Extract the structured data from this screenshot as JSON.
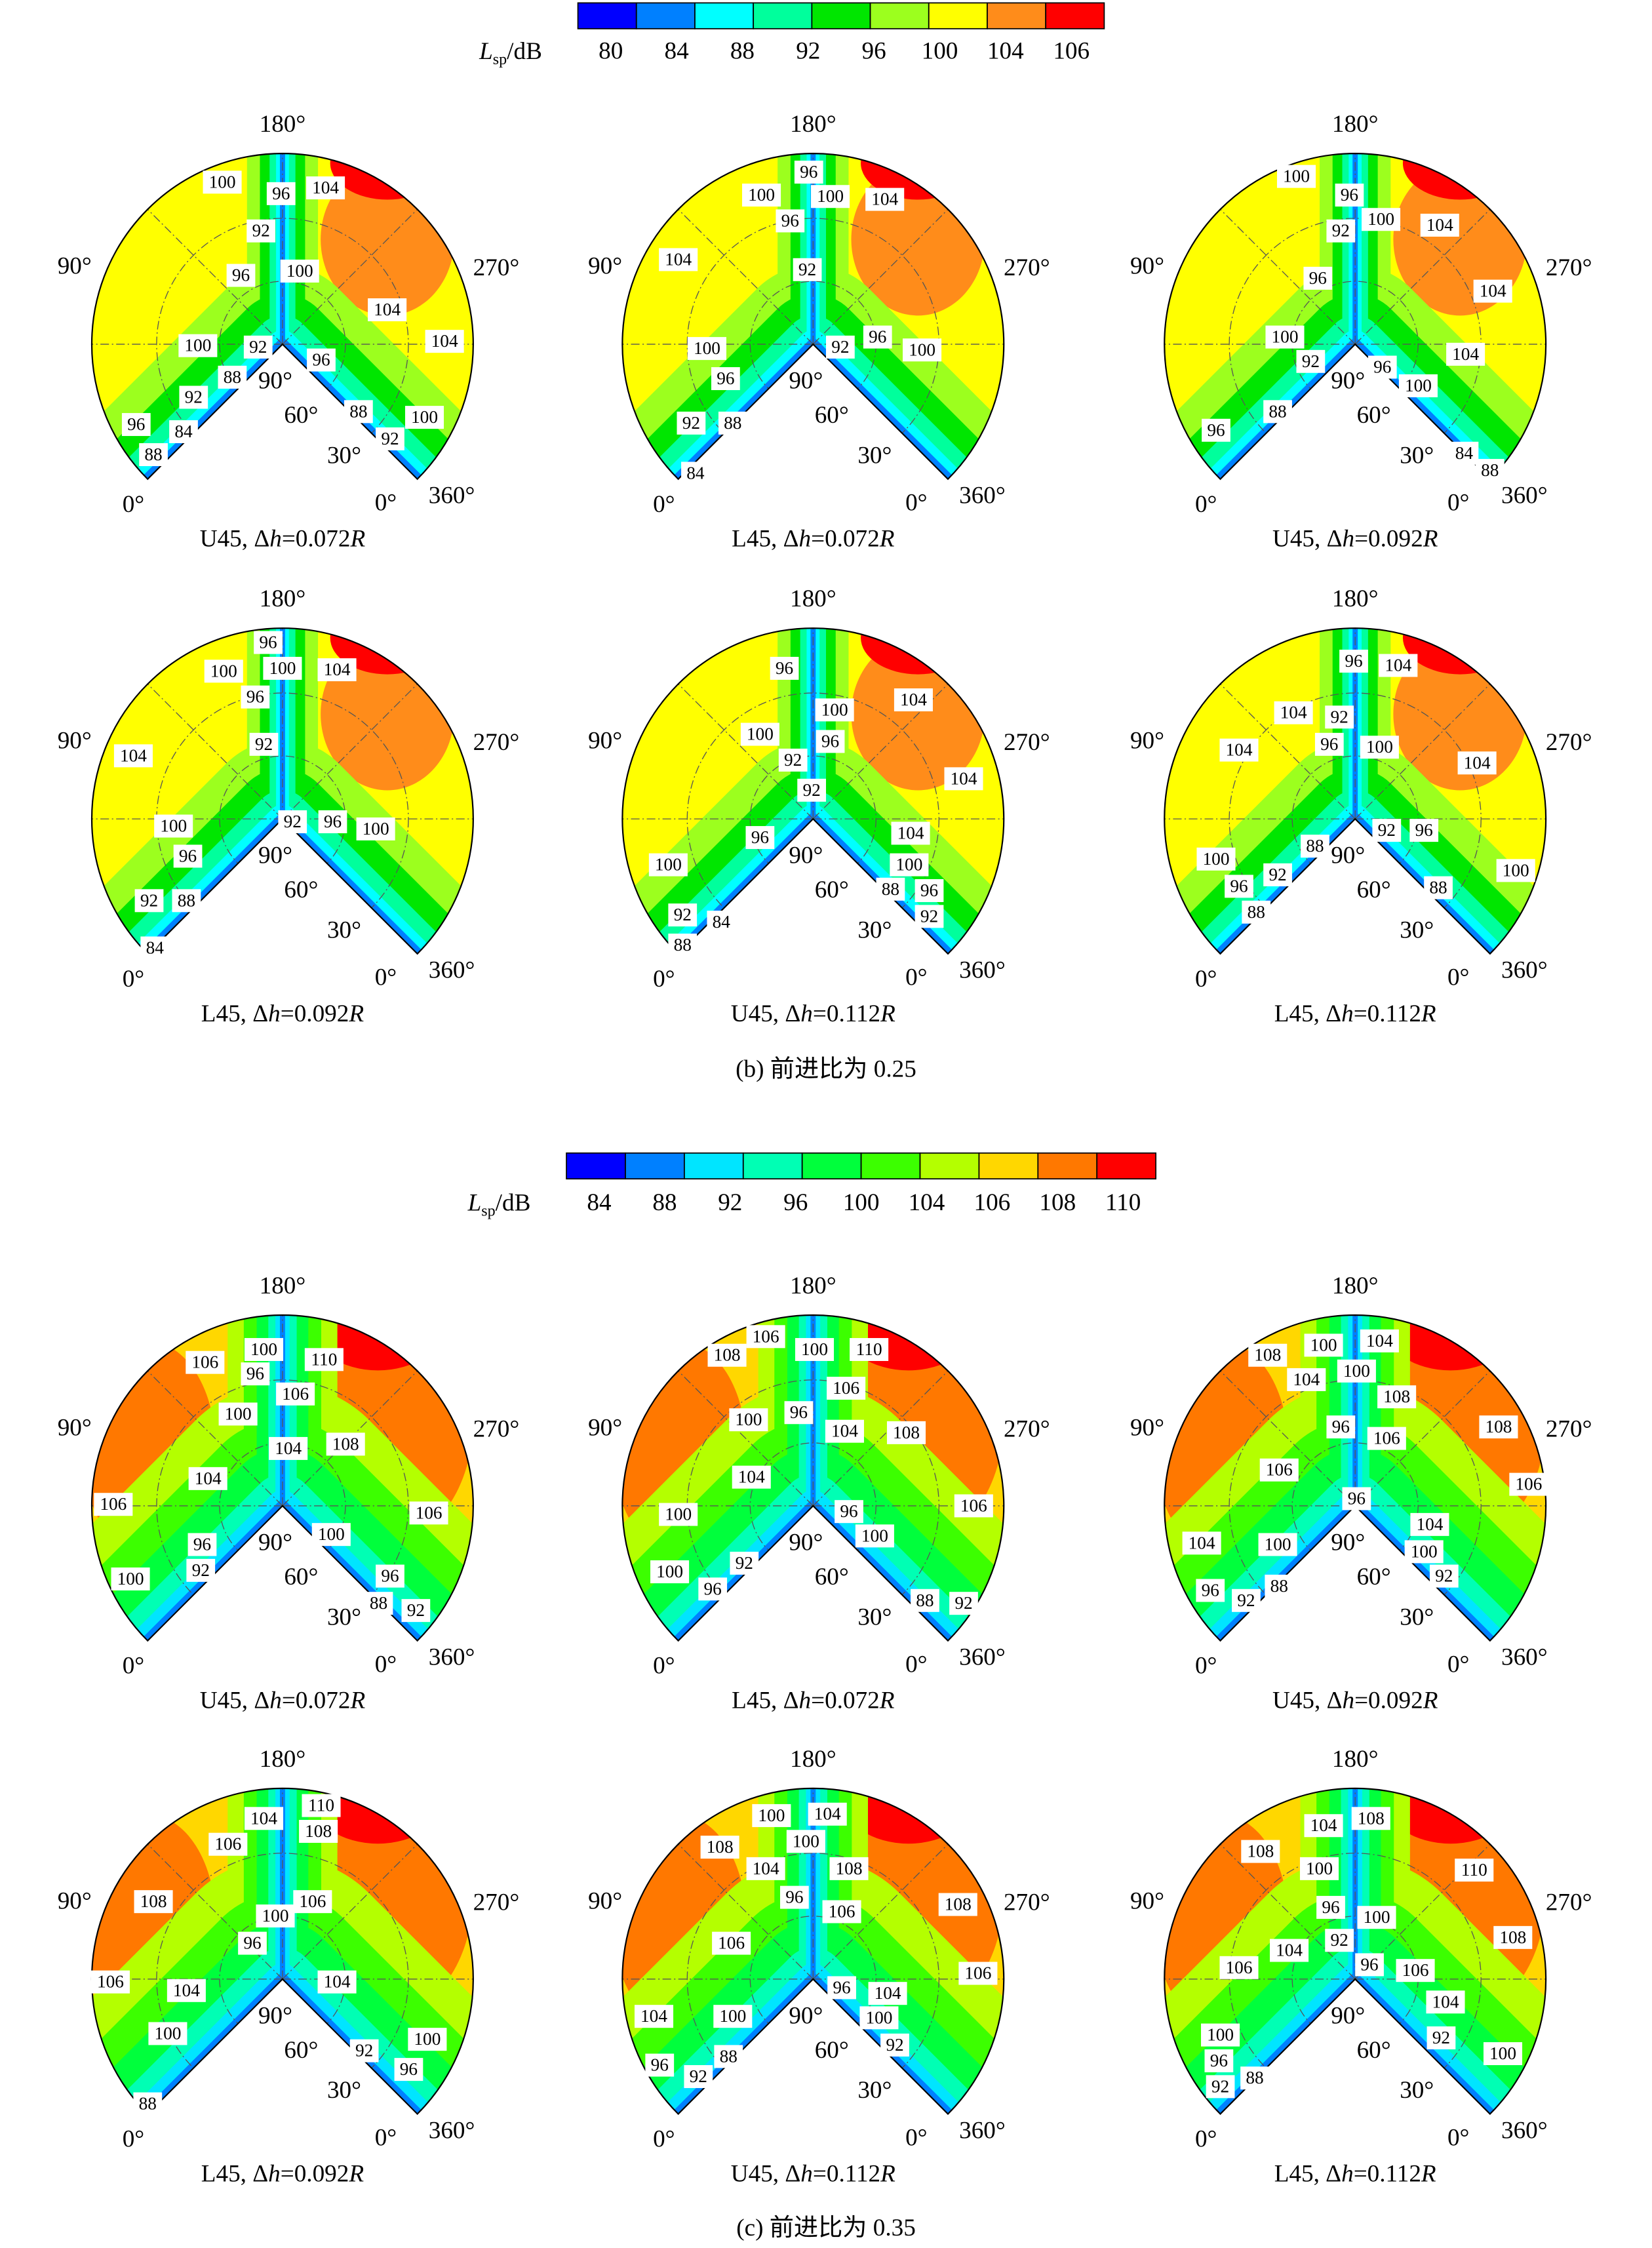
{
  "angle_labels": {
    "top": "180°",
    "left": "90°",
    "right": "270°",
    "inner_90": "90°",
    "inner_60": "60°",
    "inner_30": "30°",
    "zero_right": "0°",
    "full": "360°",
    "zero_left": "0°"
  },
  "sections": [
    {
      "caption": "(b) 前进比为 0.25",
      "colorbar": {
        "label": [
          "L",
          "sp",
          "/dB"
        ],
        "ticks": [
          80,
          84,
          88,
          92,
          96,
          100,
          104,
          106
        ],
        "colors": [
          "#0000ff",
          "#0080ff",
          "#00ffff",
          "#00ff9c",
          "#00e600",
          "#9cff1e",
          "#ffff00",
          "#ff8c1a",
          "#ff0000"
        ]
      },
      "panels": [
        {
          "caption": [
            "U45, Δ",
            "h",
            "=0.072",
            "R"
          ],
          "labels": [
            100,
            96,
            104,
            92,
            96,
            100,
            104,
            104,
            100,
            92,
            96,
            88,
            92,
            88,
            100,
            96,
            84,
            92,
            88
          ]
        },
        {
          "caption": [
            "L45, Δ",
            "h",
            "=0.072",
            "R"
          ],
          "labels": [
            96,
            100,
            100,
            104,
            96,
            92,
            104,
            100,
            92,
            96,
            100,
            96,
            92,
            88,
            84
          ]
        },
        {
          "caption": [
            "U45, Δ",
            "h",
            "=0.092",
            "R"
          ],
          "labels": [
            100,
            96,
            92,
            100,
            104,
            96,
            104,
            100,
            92,
            96,
            104,
            100,
            88,
            96,
            84,
            88
          ]
        },
        {
          "caption": [
            "L45, Δ",
            "h",
            "=0.092",
            "R"
          ],
          "labels": [
            96,
            100,
            100,
            104,
            96,
            92,
            104,
            100,
            92,
            96,
            100,
            96,
            92,
            88,
            84
          ]
        },
        {
          "caption": [
            "U45, Δ",
            "h",
            "=0.112",
            "R"
          ],
          "labels": [
            96,
            104,
            100,
            100,
            92,
            96,
            92,
            104,
            96,
            104,
            100,
            100,
            88,
            96,
            92,
            84,
            92,
            88
          ]
        },
        {
          "caption": [
            "L45, Δ",
            "h",
            "=0.112",
            "R"
          ],
          "labels": [
            96,
            104,
            104,
            92,
            96,
            100,
            104,
            104,
            92,
            96,
            88,
            100,
            92,
            100,
            96,
            88,
            88
          ]
        }
      ]
    },
    {
      "caption": "(c) 前进比为 0.35",
      "colorbar": {
        "label": [
          "L",
          "sp",
          "/dB"
        ],
        "ticks": [
          84,
          88,
          92,
          96,
          100,
          104,
          106,
          108,
          110
        ],
        "colors": [
          "#0000ff",
          "#0080ff",
          "#00e5ff",
          "#00ffb4",
          "#00ff3c",
          "#3cff00",
          "#b4ff00",
          "#ffd700",
          "#ff7800",
          "#ff0000"
        ]
      },
      "panels": [
        {
          "caption": [
            "U45, Δ",
            "h",
            "=0.072",
            "R"
          ],
          "labels": [
            100,
            110,
            106,
            96,
            106,
            100,
            104,
            108,
            104,
            106,
            106,
            96,
            100,
            92,
            100,
            96,
            88,
            92
          ]
        },
        {
          "caption": [
            "L45, Δ",
            "h",
            "=0.072",
            "R"
          ],
          "labels": [
            106,
            108,
            100,
            110,
            106,
            96,
            104,
            100,
            108,
            104,
            106,
            100,
            96,
            100,
            92,
            100,
            96,
            88,
            92
          ]
        },
        {
          "caption": [
            "U45, Δ",
            "h",
            "=0.092",
            "R"
          ],
          "labels": [
            108,
            100,
            104,
            104,
            100,
            108,
            96,
            106,
            108,
            106,
            106,
            96,
            104,
            100,
            104,
            100,
            92,
            96,
            92,
            88
          ]
        },
        {
          "caption": [
            "L45, Δ",
            "h",
            "=0.092",
            "R"
          ],
          "labels": [
            110,
            104,
            108,
            106,
            108,
            106,
            100,
            96,
            106,
            104,
            104,
            100,
            100,
            92,
            96,
            88
          ]
        },
        {
          "caption": [
            "U45, Δ",
            "h",
            "=0.112",
            "R"
          ],
          "labels": [
            100,
            104,
            108,
            100,
            104,
            108,
            96,
            106,
            108,
            106,
            106,
            96,
            104,
            104,
            100,
            100,
            92,
            96,
            92,
            88
          ]
        },
        {
          "caption": [
            "L45, Δ",
            "h",
            "=0.112",
            "R"
          ],
          "labels": [
            104,
            108,
            108,
            110,
            100,
            96,
            100,
            92,
            104,
            108,
            96,
            106,
            106,
            104,
            100,
            92,
            100,
            96,
            92,
            88
          ]
        }
      ]
    }
  ]
}
